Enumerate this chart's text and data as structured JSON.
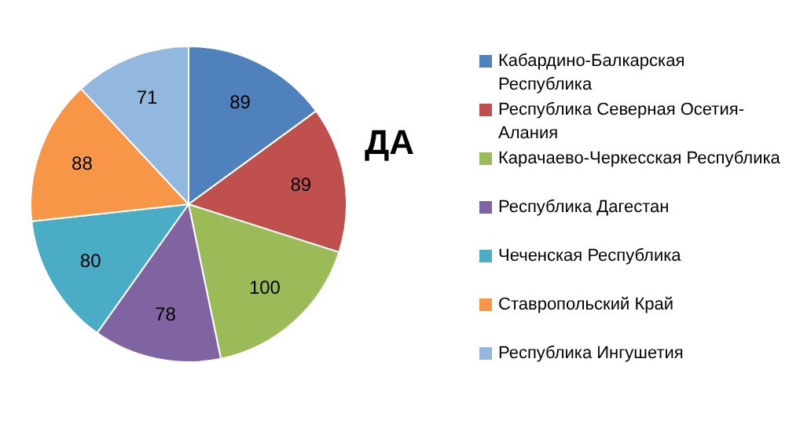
{
  "chart_data": {
    "type": "pie",
    "title": "ДА",
    "categories": [
      "Кабардино-Балкарская Республика",
      "Республика Северная Осетия-Алания",
      "Карачаево-Черкесская Республика",
      "Республика Дагестан",
      "Чеченская Республика",
      "Ставропольский Край",
      "Республика Ингушетия"
    ],
    "values": [
      89,
      89,
      100,
      78,
      80,
      88,
      71
    ],
    "colors": [
      "#4f81bd",
      "#c0504d",
      "#9bbb59",
      "#8064a2",
      "#4bacc6",
      "#f79646",
      "#93b8e0"
    ],
    "data_labels": true,
    "legend": "right"
  }
}
